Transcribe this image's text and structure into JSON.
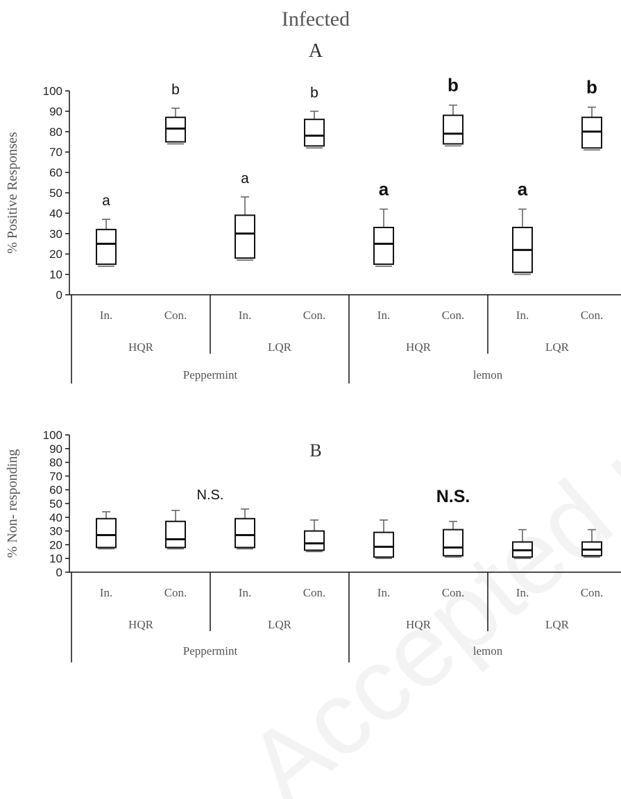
{
  "figure": {
    "title": "Infected",
    "watermark": "Accepted manuscript"
  },
  "chart_data": [
    {
      "type": "box",
      "panel_label": "A",
      "ylabel": "% Positive Responses",
      "ylim": [
        0,
        100
      ],
      "yticks": [
        0,
        10,
        20,
        30,
        40,
        50,
        60,
        70,
        80,
        90,
        100
      ],
      "categories": [
        "In.",
        "Con.",
        "In.",
        "Con.",
        "In.",
        "Con.",
        "In.",
        "Con."
      ],
      "groups_level1": [
        "HQR",
        "LQR",
        "HQR",
        "LQR"
      ],
      "groups_level2": [
        "Peppermint",
        "lemon"
      ],
      "boxes": [
        {
          "min": 14,
          "q1": 15,
          "median": 25,
          "q3": 32,
          "max": 37,
          "letter": "a",
          "letter_bold": false
        },
        {
          "min": 74,
          "q1": 75,
          "median": 81.5,
          "q3": 87,
          "max": 91.5,
          "letter": "b",
          "letter_bold": false
        },
        {
          "min": 17,
          "q1": 18,
          "median": 30,
          "q3": 39,
          "max": 48,
          "letter": "a",
          "letter_bold": false
        },
        {
          "min": 72,
          "q1": 73,
          "median": 78,
          "q3": 86,
          "max": 90,
          "letter": "b",
          "letter_bold": false
        },
        {
          "min": 14,
          "q1": 15,
          "median": 25,
          "q3": 33,
          "max": 42,
          "letter": "a",
          "letter_bold": true
        },
        {
          "min": 73,
          "q1": 74,
          "median": 79,
          "q3": 88,
          "max": 93,
          "letter": "b",
          "letter_bold": true
        },
        {
          "min": 10,
          "q1": 11,
          "median": 22,
          "q3": 33,
          "max": 42,
          "letter": "a",
          "letter_bold": true
        },
        {
          "min": 71,
          "q1": 72,
          "median": 80,
          "q3": 87,
          "max": 92,
          "letter": "b",
          "letter_bold": true
        }
      ],
      "annotations": []
    },
    {
      "type": "box",
      "panel_label": "B",
      "ylabel": "% Non- responding",
      "ylim": [
        0,
        100
      ],
      "yticks": [
        0,
        10,
        20,
        30,
        40,
        50,
        60,
        70,
        80,
        90,
        100
      ],
      "categories": [
        "In.",
        "Con.",
        "In.",
        "Con.",
        "In.",
        "Con.",
        "In.",
        "Con."
      ],
      "groups_level1": [
        "HQR",
        "LQR",
        "HQR",
        "LQR"
      ],
      "groups_level2": [
        "Peppermint",
        "lemon"
      ],
      "boxes": [
        {
          "min": 17,
          "q1": 18,
          "median": 27,
          "q3": 39,
          "max": 44
        },
        {
          "min": 17,
          "q1": 18,
          "median": 24,
          "q3": 37,
          "max": 45
        },
        {
          "min": 17,
          "q1": 18,
          "median": 27,
          "q3": 39,
          "max": 46
        },
        {
          "min": 15,
          "q1": 16,
          "median": 21,
          "q3": 30,
          "max": 38
        },
        {
          "min": 10,
          "q1": 11,
          "median": 18.5,
          "q3": 29,
          "max": 38
        },
        {
          "min": 11,
          "q1": 12,
          "median": 18,
          "q3": 31,
          "max": 37
        },
        {
          "min": 10,
          "q1": 11,
          "median": 16,
          "q3": 22,
          "max": 31
        },
        {
          "min": 11,
          "q1": 12,
          "median": 16.5,
          "q3": 22,
          "max": 31
        }
      ],
      "annotations": [
        {
          "text": "N.S.",
          "bold": false,
          "x_between": [
            1,
            2
          ],
          "y": 53
        },
        {
          "text": "N.S.",
          "bold": true,
          "x_between": [
            5,
            5
          ],
          "y": 51
        }
      ]
    }
  ]
}
